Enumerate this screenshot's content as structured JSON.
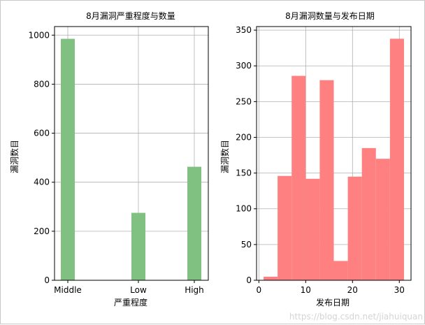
{
  "chart_data": [
    {
      "type": "bar",
      "title": "8月漏洞严重程度与数量",
      "xlabel": "严重程度",
      "ylabel": "漏洞数目",
      "categories": [
        "Middle",
        "Low",
        "High"
      ],
      "values": [
        985,
        275,
        463
      ],
      "yticks": [
        0,
        200,
        400,
        600,
        800,
        1000
      ],
      "ylim": [
        0,
        1035
      ],
      "grid": true,
      "color": "#80c080"
    },
    {
      "type": "bar",
      "title": "8月漏洞数量与发布日期",
      "xlabel": "发布日期",
      "ylabel": "漏洞数目",
      "bins": [
        {
          "x0": 1,
          "x1": 4,
          "value": 5
        },
        {
          "x0": 4,
          "x1": 7,
          "value": 146
        },
        {
          "x0": 7,
          "x1": 10,
          "value": 286
        },
        {
          "x0": 10,
          "x1": 13,
          "value": 142
        },
        {
          "x0": 13,
          "x1": 16,
          "value": 280
        },
        {
          "x0": 16,
          "x1": 19,
          "value": 27
        },
        {
          "x0": 19,
          "x1": 22,
          "value": 145
        },
        {
          "x0": 22,
          "x1": 25,
          "value": 185
        },
        {
          "x0": 25,
          "x1": 28,
          "value": 170
        },
        {
          "x0": 28,
          "x1": 31,
          "value": 338
        }
      ],
      "xticks": [
        0,
        10,
        20,
        30
      ],
      "yticks": [
        0,
        50,
        100,
        150,
        200,
        250,
        300,
        350
      ],
      "xlim": [
        -0.5,
        32.5
      ],
      "ylim": [
        0,
        355
      ],
      "grid": true,
      "color": "#ff8080"
    }
  ],
  "watermark": "https://blog.csdn.net/jiahuiquan"
}
